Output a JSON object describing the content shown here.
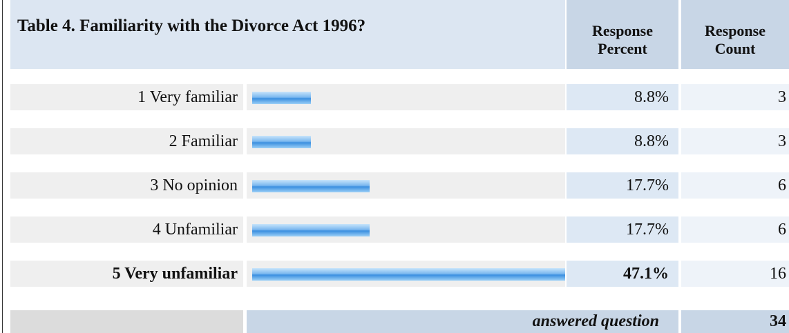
{
  "table": {
    "title": "Table 4. Familiarity with the Divorce Act 1996?",
    "columns": [
      "Response Percent",
      "Response Count"
    ],
    "rows": [
      {
        "label": "1 Very familiar",
        "percent": 8.8,
        "percent_label": "8.8%",
        "count": 3,
        "bold": false
      },
      {
        "label": "2 Familiar",
        "percent": 8.8,
        "percent_label": "8.8%",
        "count": 3,
        "bold": false
      },
      {
        "label": "3 No opinion",
        "percent": 17.7,
        "percent_label": "17.7%",
        "count": 6,
        "bold": false
      },
      {
        "label": "4 Unfamiliar",
        "percent": 17.7,
        "percent_label": "17.7%",
        "count": 6,
        "bold": false
      },
      {
        "label": "5 Very unfamiliar",
        "percent": 47.1,
        "percent_label": "47.1%",
        "count": 16,
        "bold": true
      }
    ],
    "footer": {
      "label": "answered question",
      "count": 34
    }
  }
}
